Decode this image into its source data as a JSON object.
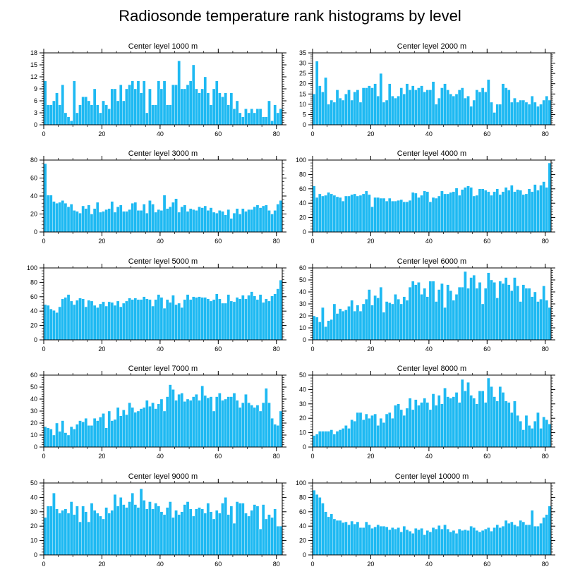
{
  "figure": {
    "title": "Radiosonde temperature rank histograms by level",
    "bar_color": "#1EB9F2",
    "bar_edge_color": "#ffffff"
  },
  "chart_data": [
    {
      "type": "bar",
      "title": "Center level 1000 m",
      "x_start": 0,
      "xlim": [
        0,
        82
      ],
      "ylim": [
        0,
        18
      ],
      "xticks": [
        0,
        20,
        40,
        60,
        80
      ],
      "yticks": [
        0,
        3,
        6,
        9,
        12,
        15,
        18
      ],
      "values": [
        11,
        5,
        5,
        6,
        8,
        5,
        10,
        3,
        2,
        1,
        11,
        3,
        5,
        7,
        7,
        6,
        5,
        9,
        5,
        3,
        6,
        5,
        4,
        9,
        9,
        6,
        10,
        6,
        9,
        10,
        11,
        9,
        11,
        8,
        11,
        3,
        9,
        5,
        5,
        11,
        9,
        11,
        5,
        5,
        10,
        10,
        16,
        9,
        9,
        10,
        11,
        15,
        9,
        8,
        9,
        12,
        8,
        5,
        9,
        11,
        8,
        7,
        8,
        5,
        8,
        4,
        6,
        3,
        2,
        4,
        3,
        4,
        3,
        4,
        4,
        2,
        2,
        6,
        1,
        5,
        3,
        4
      ]
    },
    {
      "type": "bar",
      "title": "Center level 2000 m",
      "x_start": 0,
      "xlim": [
        0,
        82
      ],
      "ylim": [
        0,
        35
      ],
      "xticks": [
        0,
        20,
        40,
        60,
        80
      ],
      "yticks": [
        0,
        5,
        10,
        15,
        20,
        25,
        30,
        35
      ],
      "values": [
        15,
        31,
        19,
        16,
        23,
        10,
        12,
        11,
        17,
        13,
        12,
        15,
        17,
        12,
        16,
        17,
        11,
        18,
        18,
        19,
        18,
        20,
        14,
        25,
        11,
        12,
        20,
        14,
        13,
        14,
        18,
        15,
        20,
        17,
        19,
        17,
        18,
        19,
        16,
        17,
        17,
        21,
        10,
        13,
        18,
        20,
        17,
        15,
        14,
        15,
        17,
        18,
        13,
        14,
        9,
        12,
        17,
        16,
        18,
        16,
        22,
        11,
        6,
        10,
        10,
        20,
        18,
        17,
        11,
        13,
        11,
        12,
        12,
        11,
        10,
        14,
        11,
        9,
        10,
        12,
        14,
        12
      ]
    },
    {
      "type": "bar",
      "title": "Center level 3000 m",
      "x_start": 0,
      "xlim": [
        0,
        82
      ],
      "ylim": [
        0,
        80
      ],
      "xticks": [
        0,
        20,
        40,
        60,
        80
      ],
      "yticks": [
        0,
        20,
        40,
        60,
        80
      ],
      "values": [
        76,
        41,
        41,
        34,
        32,
        33,
        35,
        32,
        28,
        31,
        24,
        23,
        21,
        29,
        26,
        30,
        20,
        26,
        33,
        22,
        23,
        25,
        26,
        34,
        22,
        28,
        30,
        23,
        23,
        25,
        32,
        33,
        24,
        24,
        31,
        21,
        35,
        31,
        22,
        25,
        24,
        41,
        26,
        28,
        33,
        37,
        22,
        28,
        30,
        23,
        26,
        25,
        24,
        28,
        27,
        29,
        24,
        27,
        22,
        21,
        24,
        23,
        19,
        25,
        15,
        21,
        26,
        20,
        26,
        23,
        25,
        25,
        28,
        30,
        27,
        29,
        30,
        24,
        20,
        24,
        31,
        35
      ]
    },
    {
      "type": "bar",
      "title": "Center level 4000 m",
      "x_start": 0,
      "xlim": [
        0,
        82
      ],
      "ylim": [
        0,
        100
      ],
      "xticks": [
        0,
        20,
        40,
        60,
        80
      ],
      "yticks": [
        0,
        20,
        40,
        60,
        80,
        100
      ],
      "values": [
        64,
        48,
        53,
        50,
        51,
        55,
        53,
        51,
        49,
        48,
        43,
        50,
        50,
        52,
        53,
        50,
        51,
        53,
        57,
        52,
        35,
        48,
        48,
        47,
        47,
        43,
        47,
        43,
        43,
        44,
        45,
        42,
        42,
        44,
        55,
        54,
        48,
        51,
        57,
        56,
        42,
        48,
        47,
        50,
        57,
        53,
        53,
        55,
        56,
        61,
        51,
        59,
        62,
        64,
        62,
        50,
        51,
        60,
        60,
        58,
        56,
        51,
        56,
        60,
        52,
        56,
        62,
        58,
        65,
        56,
        59,
        58,
        52,
        53,
        60,
        56,
        66,
        58,
        65,
        70,
        62,
        96
      ]
    },
    {
      "type": "bar",
      "title": "Center level 5000 m",
      "x_start": 0,
      "xlim": [
        0,
        82
      ],
      "ylim": [
        0,
        100
      ],
      "xticks": [
        0,
        20,
        40,
        60,
        80
      ],
      "yticks": [
        0,
        20,
        40,
        60,
        80,
        100
      ],
      "values": [
        49,
        48,
        43,
        41,
        38,
        46,
        57,
        59,
        63,
        54,
        49,
        55,
        58,
        57,
        46,
        55,
        54,
        48,
        45,
        50,
        53,
        47,
        53,
        52,
        48,
        54,
        46,
        51,
        54,
        58,
        56,
        58,
        56,
        56,
        60,
        57,
        56,
        47,
        56,
        63,
        59,
        44,
        56,
        52,
        62,
        49,
        51,
        45,
        56,
        63,
        56,
        60,
        59,
        60,
        59,
        59,
        57,
        54,
        56,
        64,
        57,
        51,
        51,
        63,
        54,
        53,
        59,
        57,
        62,
        57,
        62,
        67,
        61,
        56,
        63,
        52,
        57,
        54,
        61,
        64,
        71,
        83
      ]
    },
    {
      "type": "bar",
      "title": "Center level 6000 m",
      "x_start": 0,
      "xlim": [
        0,
        82
      ],
      "ylim": [
        0,
        60
      ],
      "xticks": [
        0,
        20,
        40,
        60,
        80
      ],
      "yticks": [
        0,
        10,
        20,
        30,
        40,
        50,
        60
      ],
      "values": [
        20,
        19,
        15,
        27,
        11,
        16,
        17,
        30,
        22,
        26,
        24,
        25,
        28,
        33,
        24,
        29,
        24,
        30,
        34,
        42,
        29,
        37,
        35,
        44,
        23,
        32,
        31,
        30,
        38,
        34,
        30,
        36,
        33,
        44,
        49,
        46,
        48,
        38,
        43,
        36,
        49,
        49,
        32,
        42,
        47,
        27,
        46,
        41,
        33,
        38,
        44,
        44,
        57,
        43,
        52,
        54,
        43,
        48,
        30,
        43,
        56,
        50,
        48,
        35,
        49,
        47,
        52,
        46,
        41,
        52,
        45,
        32,
        46,
        43,
        43,
        36,
        40,
        32,
        34,
        45,
        33,
        27
      ]
    },
    {
      "type": "bar",
      "title": "Center level 7000 m",
      "x_start": 0,
      "xlim": [
        0,
        82
      ],
      "ylim": [
        0,
        60
      ],
      "xticks": [
        0,
        20,
        40,
        60,
        80
      ],
      "yticks": [
        0,
        10,
        20,
        30,
        40,
        50,
        60
      ],
      "values": [
        17,
        16,
        15,
        10,
        20,
        13,
        22,
        12,
        10,
        17,
        15,
        19,
        22,
        21,
        24,
        18,
        18,
        24,
        22,
        25,
        28,
        16,
        30,
        22,
        23,
        33,
        26,
        31,
        27,
        37,
        33,
        29,
        30,
        32,
        33,
        39,
        34,
        37,
        32,
        36,
        40,
        30,
        42,
        52,
        48,
        39,
        44,
        45,
        38,
        40,
        39,
        42,
        44,
        39,
        51,
        43,
        41,
        42,
        30,
        42,
        45,
        39,
        40,
        42,
        42,
        45,
        39,
        33,
        37,
        44,
        37,
        35,
        33,
        35,
        30,
        37,
        49,
        37,
        24,
        19,
        18,
        30
      ]
    },
    {
      "type": "bar",
      "title": "Center level 8000 m",
      "x_start": 0,
      "xlim": [
        0,
        82
      ],
      "ylim": [
        0,
        50
      ],
      "xticks": [
        0,
        20,
        40,
        60,
        80
      ],
      "yticks": [
        0,
        10,
        20,
        30,
        40,
        50
      ],
      "values": [
        8,
        9,
        11,
        11,
        11,
        11,
        12,
        9,
        11,
        12,
        13,
        15,
        13,
        19,
        18,
        24,
        24,
        19,
        23,
        20,
        22,
        23,
        15,
        20,
        17,
        23,
        24,
        20,
        29,
        30,
        26,
        22,
        27,
        34,
        26,
        33,
        29,
        31,
        34,
        31,
        26,
        37,
        29,
        36,
        30,
        41,
        35,
        34,
        35,
        38,
        31,
        47,
        39,
        45,
        36,
        34,
        30,
        39,
        39,
        31,
        48,
        42,
        35,
        32,
        42,
        38,
        32,
        31,
        24,
        32,
        22,
        18,
        12,
        22,
        15,
        13,
        18,
        24,
        13,
        21,
        19,
        16
      ]
    },
    {
      "type": "bar",
      "title": "Center level 9000 m",
      "x_start": 0,
      "xlim": [
        0,
        82
      ],
      "ylim": [
        0,
        50
      ],
      "xticks": [
        0,
        20,
        40,
        60,
        80
      ],
      "yticks": [
        0,
        10,
        20,
        30,
        40,
        50
      ],
      "values": [
        26,
        34,
        34,
        43,
        32,
        29,
        31,
        32,
        29,
        37,
        28,
        34,
        23,
        34,
        30,
        23,
        36,
        31,
        29,
        27,
        25,
        33,
        29,
        31,
        42,
        34,
        40,
        35,
        33,
        37,
        43,
        35,
        33,
        46,
        38,
        32,
        37,
        32,
        36,
        34,
        30,
        28,
        33,
        37,
        26,
        31,
        28,
        30,
        35,
        37,
        32,
        27,
        32,
        33,
        32,
        29,
        36,
        30,
        25,
        31,
        29,
        36,
        40,
        28,
        34,
        22,
        37,
        36,
        36,
        29,
        27,
        31,
        35,
        34,
        18,
        35,
        25,
        28,
        26,
        32,
        20,
        20
      ]
    },
    {
      "type": "bar",
      "title": "Center level 10000 m",
      "x_start": 0,
      "xlim": [
        0,
        82
      ],
      "ylim": [
        0,
        100
      ],
      "xticks": [
        0,
        20,
        40,
        60,
        80
      ],
      "yticks": [
        0,
        20,
        40,
        60,
        80,
        100
      ],
      "values": [
        90,
        84,
        80,
        72,
        60,
        53,
        57,
        50,
        48,
        48,
        45,
        46,
        42,
        47,
        43,
        46,
        38,
        38,
        46,
        42,
        37,
        39,
        42,
        40,
        40,
        39,
        35,
        38,
        36,
        38,
        32,
        40,
        35,
        33,
        30,
        37,
        35,
        37,
        28,
        34,
        32,
        38,
        36,
        41,
        36,
        42,
        36,
        32,
        34,
        30,
        36,
        34,
        35,
        34,
        40,
        38,
        34,
        32,
        34,
        36,
        38,
        33,
        38,
        42,
        38,
        40,
        48,
        44,
        46,
        42,
        40,
        48,
        46,
        42,
        42,
        62,
        40,
        40,
        44,
        52,
        56,
        68
      ]
    }
  ]
}
